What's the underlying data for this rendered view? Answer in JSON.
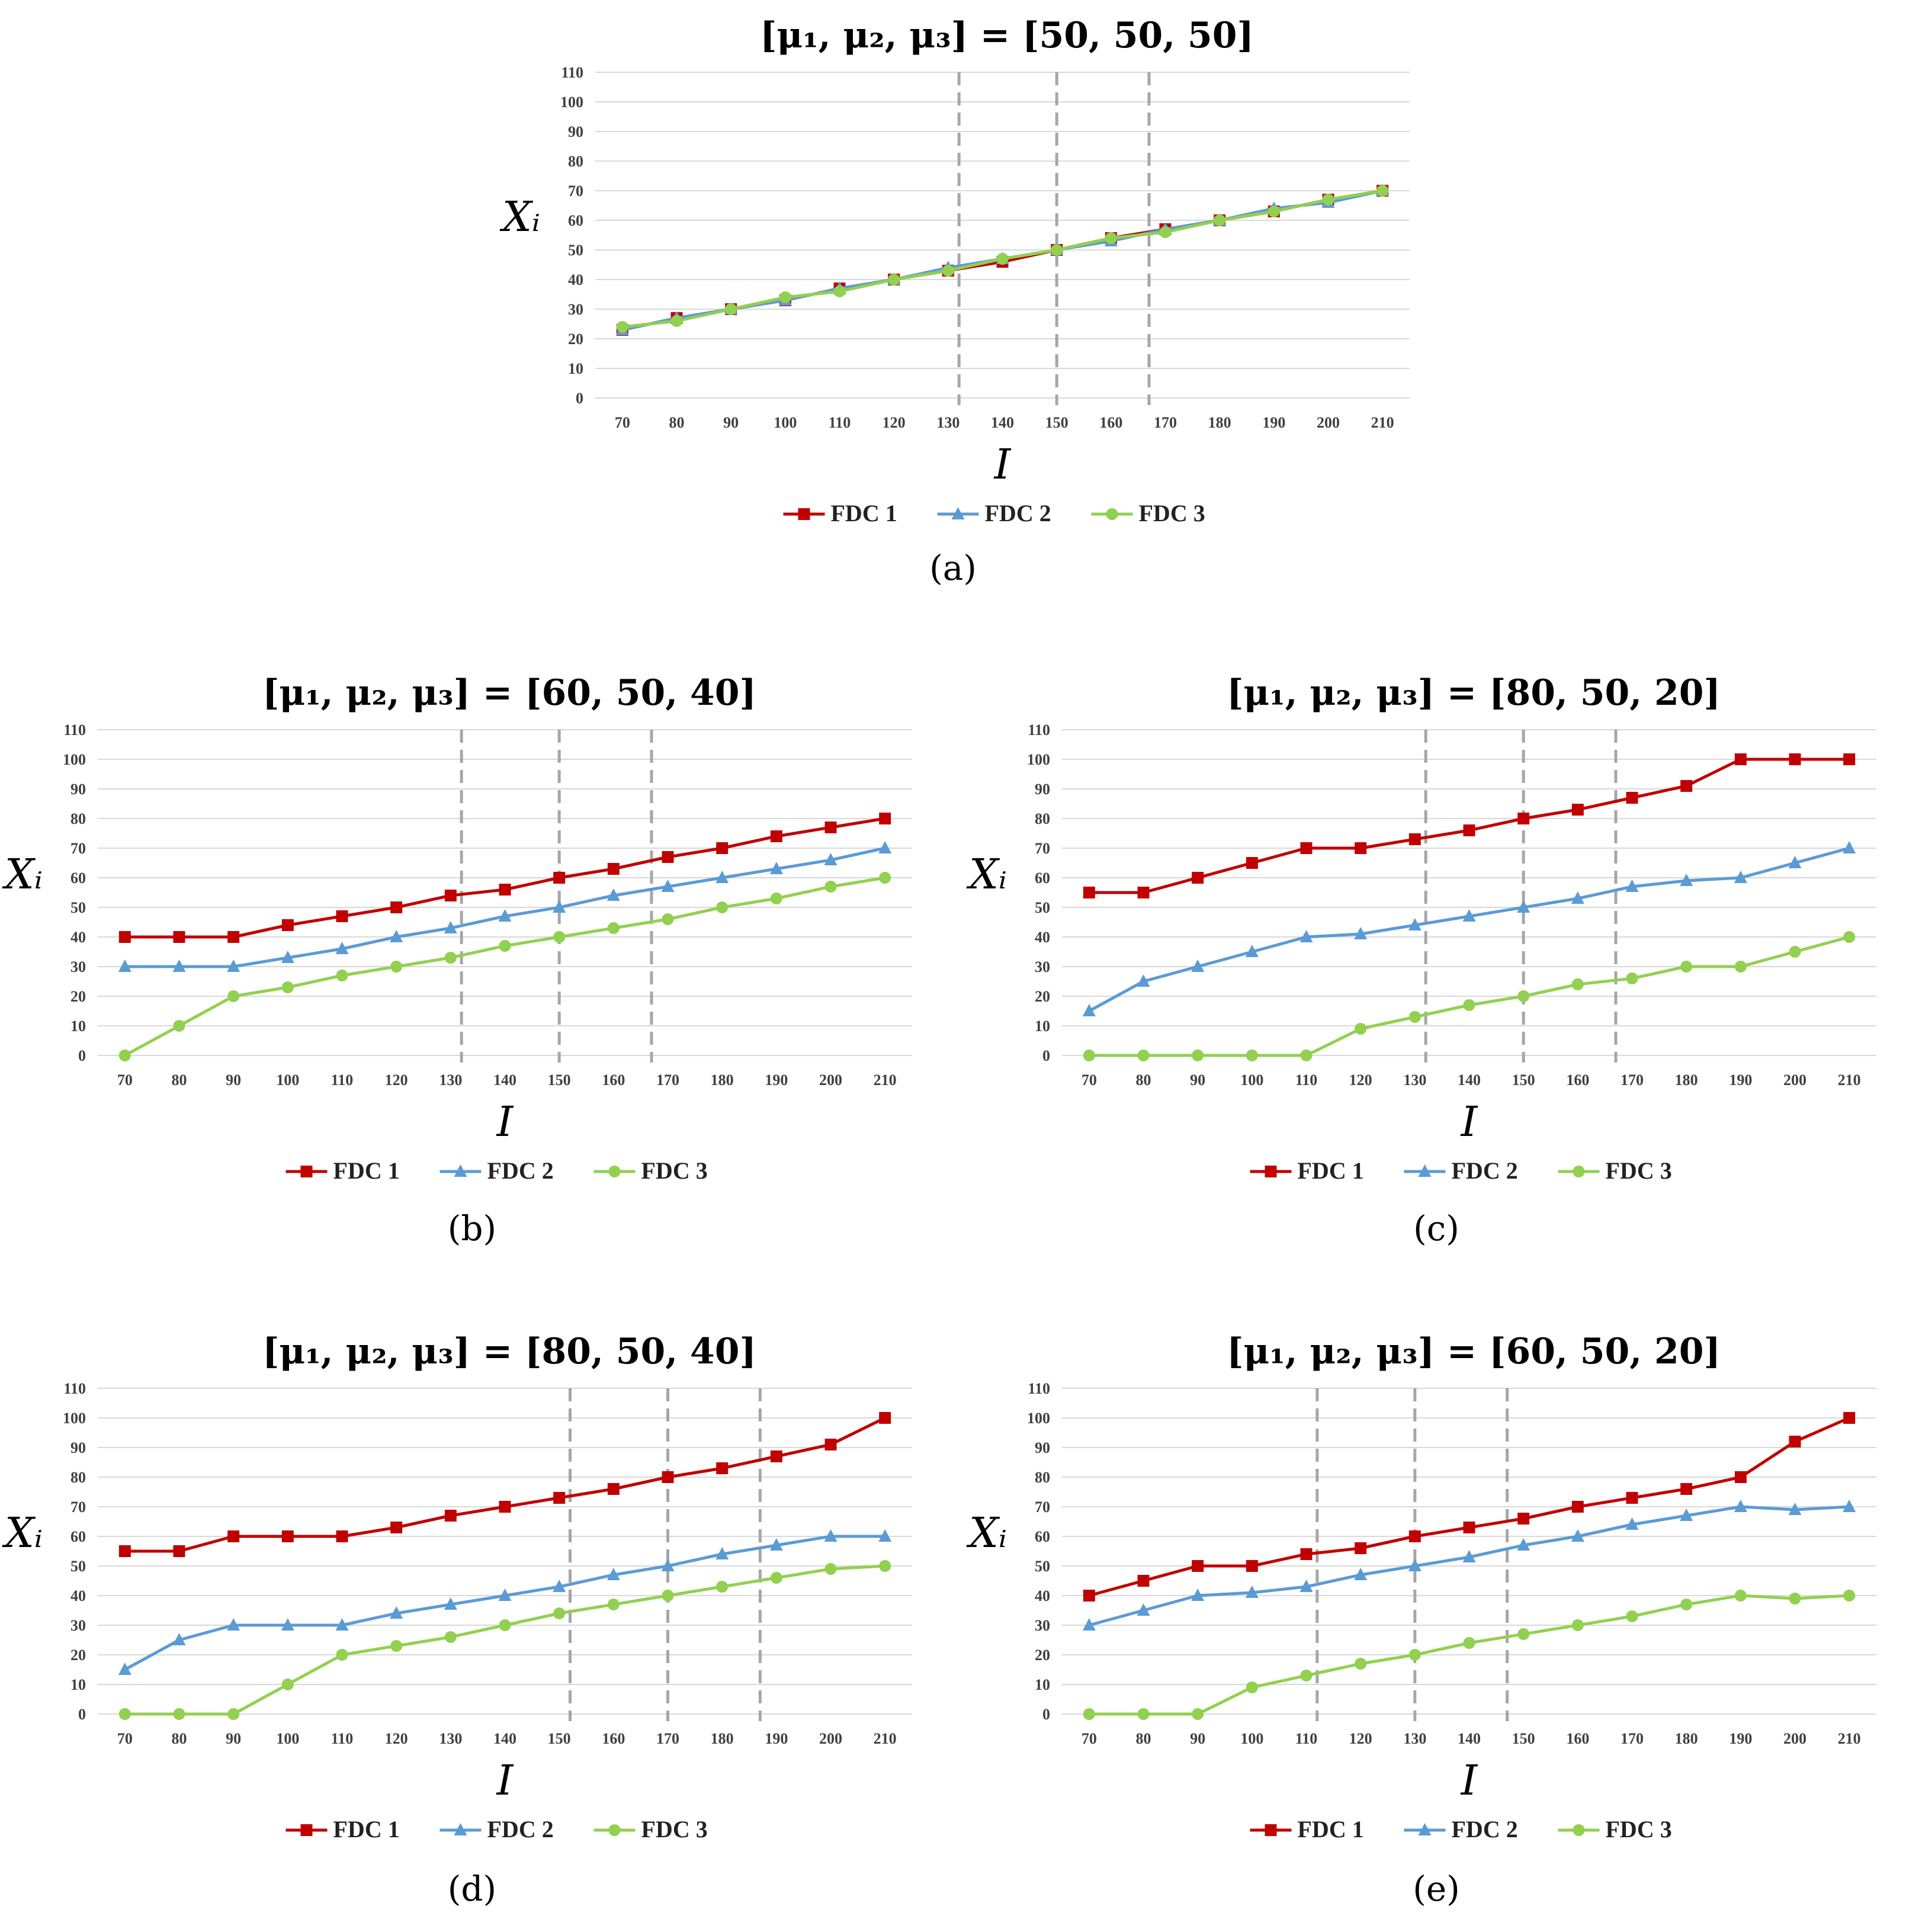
{
  "colors": {
    "fdc1": "#C00000",
    "fdc2": "#5B9BD5",
    "fdc3": "#92D050",
    "grid": "#D9D9D9",
    "vline": "#A6A6A6"
  },
  "chart_data": [
    {
      "id": "a",
      "type": "line",
      "caption": "(a)",
      "title": "[μ₁, μ₂, μ₃] = [50, 50, 50]",
      "xlabel": "I",
      "ylabel": "Xᵢ",
      "categories": [
        "70",
        "80",
        "90",
        "100",
        "110",
        "120",
        "130",
        "140",
        "150",
        "160",
        "170",
        "180",
        "190",
        "200",
        "210"
      ],
      "ylim": [
        0,
        110
      ],
      "yticks": [
        "0",
        "10",
        "20",
        "30",
        "40",
        "50",
        "60",
        "70",
        "80",
        "90",
        "100",
        "110"
      ],
      "vlines": [
        132,
        150,
        167
      ],
      "series": [
        {
          "name": "FDC 1",
          "marker": "square",
          "values": [
            23,
            27,
            30,
            33,
            37,
            40,
            43,
            46,
            50,
            54,
            57,
            60,
            63,
            67,
            70
          ]
        },
        {
          "name": "FDC 2",
          "marker": "triangle",
          "values": [
            23,
            27,
            30,
            33,
            37,
            40,
            44,
            47,
            50,
            53,
            57,
            60,
            64,
            66,
            70
          ]
        },
        {
          "name": "FDC 3",
          "marker": "circle",
          "values": [
            24,
            26,
            30,
            34,
            36,
            40,
            43,
            47,
            50,
            54,
            56,
            60,
            63,
            67,
            70
          ]
        }
      ]
    },
    {
      "id": "b",
      "type": "line",
      "caption": "(b)",
      "title": "[μ₁, μ₂, μ₃] = [60, 50, 40]",
      "xlabel": "I",
      "ylabel": "Xᵢ",
      "categories": [
        "70",
        "80",
        "90",
        "100",
        "110",
        "120",
        "130",
        "140",
        "150",
        "160",
        "170",
        "180",
        "190",
        "200",
        "210"
      ],
      "ylim": [
        0,
        110
      ],
      "yticks": [
        "0",
        "10",
        "20",
        "30",
        "40",
        "50",
        "60",
        "70",
        "80",
        "90",
        "100",
        "110"
      ],
      "vlines": [
        132,
        150,
        167
      ],
      "series": [
        {
          "name": "FDC 1",
          "marker": "square",
          "values": [
            40,
            40,
            40,
            44,
            47,
            50,
            54,
            56,
            60,
            63,
            67,
            70,
            74,
            77,
            80
          ]
        },
        {
          "name": "FDC 2",
          "marker": "triangle",
          "values": [
            30,
            30,
            30,
            33,
            36,
            40,
            43,
            47,
            50,
            54,
            57,
            60,
            63,
            66,
            70
          ]
        },
        {
          "name": "FDC 3",
          "marker": "circle",
          "values": [
            0,
            10,
            20,
            23,
            27,
            30,
            33,
            37,
            40,
            43,
            46,
            50,
            53,
            57,
            60
          ]
        }
      ]
    },
    {
      "id": "c",
      "type": "line",
      "caption": "(c)",
      "title": "[μ₁, μ₂, μ₃] = [80, 50, 20]",
      "xlabel": "I",
      "ylabel": "Xᵢ",
      "categories": [
        "70",
        "80",
        "90",
        "100",
        "110",
        "120",
        "130",
        "140",
        "150",
        "160",
        "170",
        "180",
        "190",
        "200",
        "210"
      ],
      "ylim": [
        0,
        110
      ],
      "yticks": [
        "0",
        "10",
        "20",
        "30",
        "40",
        "50",
        "60",
        "70",
        "80",
        "90",
        "100",
        "110"
      ],
      "vlines": [
        132,
        150,
        167
      ],
      "series": [
        {
          "name": "FDC 1",
          "marker": "square",
          "values": [
            55,
            55,
            60,
            65,
            70,
            70,
            73,
            76,
            80,
            83,
            87,
            91,
            100,
            100,
            100
          ]
        },
        {
          "name": "FDC 2",
          "marker": "triangle",
          "values": [
            15,
            25,
            30,
            35,
            40,
            41,
            44,
            47,
            50,
            53,
            57,
            59,
            60,
            65,
            70
          ]
        },
        {
          "name": "FDC 3",
          "marker": "circle",
          "values": [
            0,
            0,
            0,
            0,
            0,
            9,
            13,
            17,
            20,
            24,
            26,
            30,
            30,
            35,
            40
          ]
        }
      ]
    },
    {
      "id": "d",
      "type": "line",
      "caption": "(d)",
      "title": "[μ₁, μ₂, μ₃] = [80, 50, 40]",
      "xlabel": "I",
      "ylabel": "Xᵢ",
      "categories": [
        "70",
        "80",
        "90",
        "100",
        "110",
        "120",
        "130",
        "140",
        "150",
        "160",
        "170",
        "180",
        "190",
        "200",
        "210"
      ],
      "ylim": [
        0,
        110
      ],
      "yticks": [
        "0",
        "10",
        "20",
        "30",
        "40",
        "50",
        "60",
        "70",
        "80",
        "90",
        "100",
        "110"
      ],
      "vlines": [
        152,
        170,
        187
      ],
      "series": [
        {
          "name": "FDC 1",
          "marker": "square",
          "values": [
            55,
            55,
            60,
            60,
            60,
            63,
            67,
            70,
            73,
            76,
            80,
            83,
            87,
            91,
            100
          ]
        },
        {
          "name": "FDC 2",
          "marker": "triangle",
          "values": [
            15,
            25,
            30,
            30,
            30,
            34,
            37,
            40,
            43,
            47,
            50,
            54,
            57,
            60,
            60
          ]
        },
        {
          "name": "FDC 3",
          "marker": "circle",
          "values": [
            0,
            0,
            0,
            10,
            20,
            23,
            26,
            30,
            34,
            37,
            40,
            43,
            46,
            49,
            50
          ]
        }
      ]
    },
    {
      "id": "e",
      "type": "line",
      "caption": "(e)",
      "title": "[μ₁, μ₂, μ₃] = [60, 50, 20]",
      "xlabel": "I",
      "ylabel": "Xᵢ",
      "categories": [
        "70",
        "80",
        "90",
        "100",
        "110",
        "120",
        "130",
        "140",
        "150",
        "160",
        "170",
        "180",
        "190",
        "200",
        "210"
      ],
      "ylim": [
        0,
        110
      ],
      "yticks": [
        "0",
        "10",
        "20",
        "30",
        "40",
        "50",
        "60",
        "70",
        "80",
        "90",
        "100",
        "110"
      ],
      "vlines": [
        112,
        130,
        147
      ],
      "series": [
        {
          "name": "FDC 1",
          "marker": "square",
          "values": [
            40,
            45,
            50,
            50,
            54,
            56,
            60,
            63,
            66,
            70,
            73,
            76,
            80,
            92,
            100
          ]
        },
        {
          "name": "FDC 2",
          "marker": "triangle",
          "values": [
            30,
            35,
            40,
            41,
            43,
            47,
            50,
            53,
            57,
            60,
            64,
            67,
            70,
            69,
            70
          ]
        },
        {
          "name": "FDC 3",
          "marker": "circle",
          "values": [
            0,
            0,
            0,
            9,
            13,
            17,
            20,
            24,
            27,
            30,
            33,
            37,
            40,
            39,
            40
          ]
        }
      ]
    }
  ]
}
